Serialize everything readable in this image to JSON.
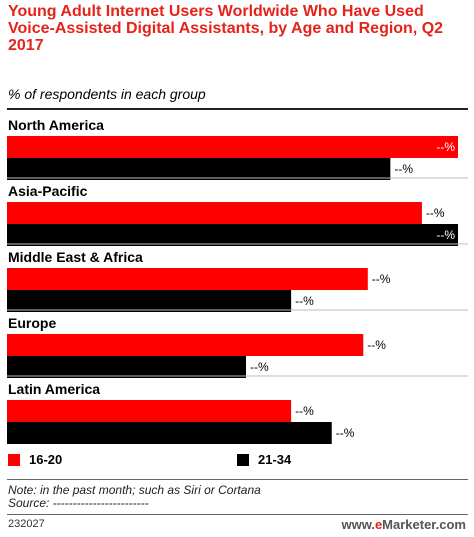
{
  "header": {
    "title": "Young Adult Internet Users Worldwide Who Have Used Voice-Assisted Digital Assistants, by Age and Region, Q2 2017",
    "subtitle": "% of respondents in each group"
  },
  "colors": {
    "accent": "#e5231b",
    "series1": "#ff0000",
    "series2": "#000000"
  },
  "chart_data": {
    "type": "bar",
    "orientation": "horizontal",
    "title": "Young Adult Internet Users Worldwide Who Have Used Voice-Assisted Digital Assistants, by Age and Region, Q2 2017",
    "subtitle": "% of respondents in each group",
    "categories": [
      "North America",
      "Asia-Pacific",
      "Middle East & Africa",
      "Europe",
      "Latin America"
    ],
    "series": [
      {
        "name": "16-20",
        "color": "#ff0000",
        "values": [
          100,
          92,
          80,
          79,
          63
        ],
        "value_labels": [
          "--%",
          "--%",
          "--%",
          "--%",
          "--%"
        ]
      },
      {
        "name": "21-34",
        "color": "#000000",
        "values": [
          85,
          100,
          63,
          53,
          72
        ],
        "value_labels": [
          "--%",
          "--%",
          "--%",
          "--%",
          "--%"
        ]
      }
    ],
    "xlim": [
      0,
      100
    ],
    "grid": false,
    "legend_position": "bottom"
  },
  "footer": {
    "note": "Note: in the past month; such as Siri or Cortana",
    "source": "Source: ------------------------",
    "chart_id": "232027",
    "brand_prefix": "www.",
    "brand_e": "e",
    "brand_rest": "Marketer.com"
  }
}
